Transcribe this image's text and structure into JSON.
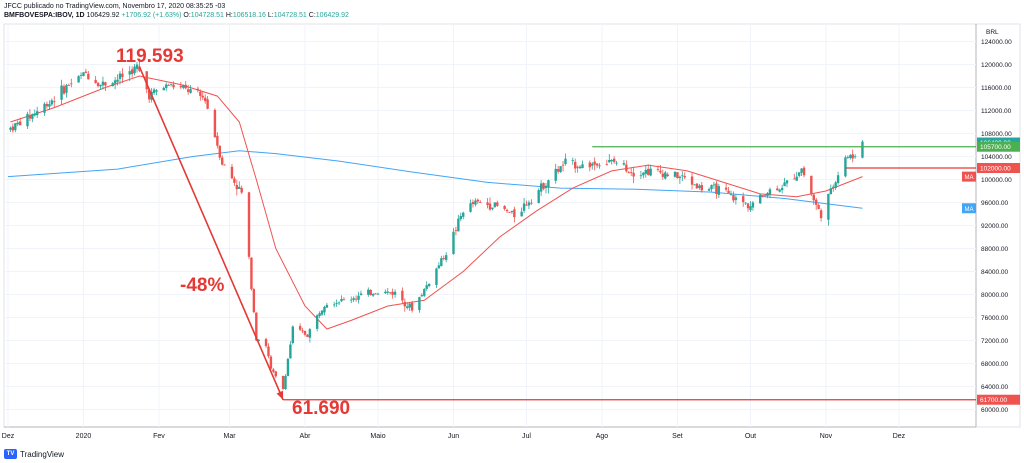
{
  "header": {
    "publisher_line": "JFCC publicado no TradingView.com, Novembro 17, 2020 08:35:25 -03",
    "symbol": "BMFBOVESPA:IBOV, 1D",
    "last": "106429.92",
    "change": "+1706.92 (+1.63%)",
    "ohlc": [
      {
        "k": "O:",
        "v": "104728.51"
      },
      {
        "k": "H:",
        "v": "106518.16"
      },
      {
        "k": "L:",
        "v": "104728.51"
      },
      {
        "k": "C:",
        "v": "106429.92"
      }
    ]
  },
  "footer": {
    "brand": "TradingView",
    "logo_text": "TV"
  },
  "colors": {
    "up": "#26a69a",
    "down": "#ef5350",
    "ma_red": "#ef5350",
    "ma_blue": "#42a5f5",
    "annotation": "#e53935",
    "resistance": "#4caf50",
    "axis_text": "#131722",
    "grid": "#f0f3fa"
  },
  "chart_data": {
    "type": "candlestick",
    "currency_label": "BRL",
    "ylim": [
      58000,
      126000
    ],
    "yticks": [
      60000,
      64000,
      68000,
      72000,
      76000,
      80000,
      84000,
      88000,
      92000,
      96000,
      100000,
      104000,
      108000,
      112000,
      116000,
      120000,
      124000
    ],
    "ytick_labels": [
      "60000.00",
      "64000.00",
      "68000.00",
      "72000.00",
      "76000.00",
      "80000.00",
      "84000.00",
      "88000.00",
      "92000.00",
      "96000.00",
      "100000.00",
      "104000.00",
      "108000.00",
      "112000.00",
      "116000.00",
      "120000.00",
      "124000.00"
    ],
    "xaxis_start": "2019-12-01",
    "xaxis_end": "2020-12-31",
    "xticks": [
      {
        "date": "2019-12-01",
        "label": "Dez"
      },
      {
        "date": "2020-01-01",
        "label": "2020"
      },
      {
        "date": "2020-02-01",
        "label": "Fev"
      },
      {
        "date": "2020-03-01",
        "label": "Mar"
      },
      {
        "date": "2020-04-01",
        "label": "Abr"
      },
      {
        "date": "2020-05-01",
        "label": "Maio"
      },
      {
        "date": "2020-06-01",
        "label": "Jun"
      },
      {
        "date": "2020-07-01",
        "label": "Jul"
      },
      {
        "date": "2020-08-01",
        "label": "Ago"
      },
      {
        "date": "2020-09-01",
        "label": "Set"
      },
      {
        "date": "2020-10-01",
        "label": "Out"
      },
      {
        "date": "2020-11-01",
        "label": "Nov"
      },
      {
        "date": "2020-12-01",
        "label": "Dez"
      }
    ],
    "close_path": [
      [
        "2019-12-02",
        108900
      ],
      [
        "2019-12-10",
        111000
      ],
      [
        "2019-12-18",
        113500
      ],
      [
        "2019-12-26",
        116500
      ],
      [
        "2020-01-02",
        118500
      ],
      [
        "2020-01-08",
        116500
      ],
      [
        "2020-01-15",
        117500
      ],
      [
        "2020-01-23",
        119500
      ],
      [
        "2020-01-28",
        114700
      ],
      [
        "2020-02-05",
        116500
      ],
      [
        "2020-02-13",
        115500
      ],
      [
        "2020-02-20",
        114000
      ],
      [
        "2020-02-27",
        102900
      ],
      [
        "2020-03-06",
        97600
      ],
      [
        "2020-03-09",
        86100
      ],
      [
        "2020-03-12",
        72600
      ],
      [
        "2020-03-16",
        71200
      ],
      [
        "2020-03-18",
        66900
      ],
      [
        "2020-03-23",
        63600
      ],
      [
        "2020-03-27",
        74000
      ],
      [
        "2020-04-02",
        73000
      ],
      [
        "2020-04-09",
        78600
      ],
      [
        "2020-04-16",
        78900
      ],
      [
        "2020-04-23",
        79700
      ],
      [
        "2020-04-30",
        80500
      ],
      [
        "2020-05-08",
        80300
      ],
      [
        "2020-05-15",
        77500
      ],
      [
        "2020-05-22",
        82200
      ],
      [
        "2020-05-29",
        87400
      ],
      [
        "2020-06-05",
        94600
      ],
      [
        "2020-06-10",
        96000
      ],
      [
        "2020-06-18",
        95500
      ],
      [
        "2020-06-26",
        93800
      ],
      [
        "2020-07-03",
        96800
      ],
      [
        "2020-07-10",
        100000
      ],
      [
        "2020-07-17",
        102900
      ],
      [
        "2020-07-24",
        102400
      ],
      [
        "2020-07-31",
        102900
      ],
      [
        "2020-08-07",
        103000
      ],
      [
        "2020-08-14",
        101300
      ],
      [
        "2020-08-21",
        101500
      ],
      [
        "2020-08-28",
        101000
      ],
      [
        "2020-09-04",
        100200
      ],
      [
        "2020-09-11",
        98400
      ],
      [
        "2020-09-18",
        98300
      ],
      [
        "2020-09-25",
        96500
      ],
      [
        "2020-10-01",
        95500
      ],
      [
        "2020-10-08",
        97900
      ],
      [
        "2020-10-15",
        99000
      ],
      [
        "2020-10-22",
        101900
      ],
      [
        "2020-10-28",
        95400
      ],
      [
        "2020-10-30",
        93900
      ],
      [
        "2020-11-05",
        100000
      ],
      [
        "2020-11-09",
        104000
      ],
      [
        "2020-11-12",
        103800
      ],
      [
        "2020-11-16",
        106430
      ]
    ],
    "ma_short": [
      [
        "2019-12-02",
        110000
      ],
      [
        "2019-12-20",
        112500
      ],
      [
        "2020-01-10",
        116000
      ],
      [
        "2020-01-24",
        118000
      ],
      [
        "2020-02-10",
        116500
      ],
      [
        "2020-02-25",
        114500
      ],
      [
        "2020-03-05",
        110000
      ],
      [
        "2020-03-12",
        100000
      ],
      [
        "2020-03-20",
        88000
      ],
      [
        "2020-04-01",
        78000
      ],
      [
        "2020-04-10",
        74000
      ],
      [
        "2020-04-20",
        75500
      ],
      [
        "2020-05-05",
        78000
      ],
      [
        "2020-05-20",
        79000
      ],
      [
        "2020-06-05",
        84000
      ],
      [
        "2020-06-20",
        90000
      ],
      [
        "2020-07-05",
        94500
      ],
      [
        "2020-07-20",
        98500
      ],
      [
        "2020-08-05",
        101500
      ],
      [
        "2020-08-20",
        102500
      ],
      [
        "2020-09-05",
        101500
      ],
      [
        "2020-09-20",
        99500
      ],
      [
        "2020-10-05",
        97500
      ],
      [
        "2020-10-20",
        97000
      ],
      [
        "2020-11-01",
        98000
      ],
      [
        "2020-11-16",
        100500
      ]
    ],
    "ma_long": [
      [
        "2019-12-01",
        100500
      ],
      [
        "2020-01-15",
        101800
      ],
      [
        "2020-02-15",
        104000
      ],
      [
        "2020-03-05",
        105000
      ],
      [
        "2020-03-20",
        104500
      ],
      [
        "2020-04-15",
        103200
      ],
      [
        "2020-05-15",
        101300
      ],
      [
        "2020-06-15",
        99500
      ],
      [
        "2020-07-15",
        98500
      ],
      [
        "2020-08-15",
        98300
      ],
      [
        "2020-09-15",
        97800
      ],
      [
        "2020-10-15",
        96700
      ],
      [
        "2020-11-16",
        95000
      ]
    ],
    "price_labels": [
      {
        "value": 106429.92,
        "text": "106429.92",
        "color": "#26a69a"
      },
      {
        "value": 105700,
        "text": "105700.00",
        "color": "#4caf50"
      },
      {
        "value": 102000,
        "text": "102000.00",
        "color": "#ef5350"
      },
      {
        "value": 61700,
        "text": "61700.00",
        "color": "#ef5350"
      }
    ],
    "ma_labels": [
      {
        "value": 100500,
        "text": "MA",
        "color": "#ef5350"
      },
      {
        "value": 95000,
        "text": "MA",
        "color": "#42a5f5"
      }
    ],
    "annotations": {
      "top_label": "119.593",
      "bottom_label": "61.690",
      "pct_label": "-48%",
      "arrow_from": {
        "date": "2020-01-24",
        "value": 119593
      },
      "arrow_to": {
        "date": "2020-03-23",
        "value": 61690
      },
      "line_low": {
        "from": "2020-03-23",
        "value": 61700
      },
      "line_resistance": {
        "from": "2020-07-28",
        "value": 105700
      },
      "line_support": {
        "from": "2020-11-09",
        "value": 102000
      }
    }
  }
}
